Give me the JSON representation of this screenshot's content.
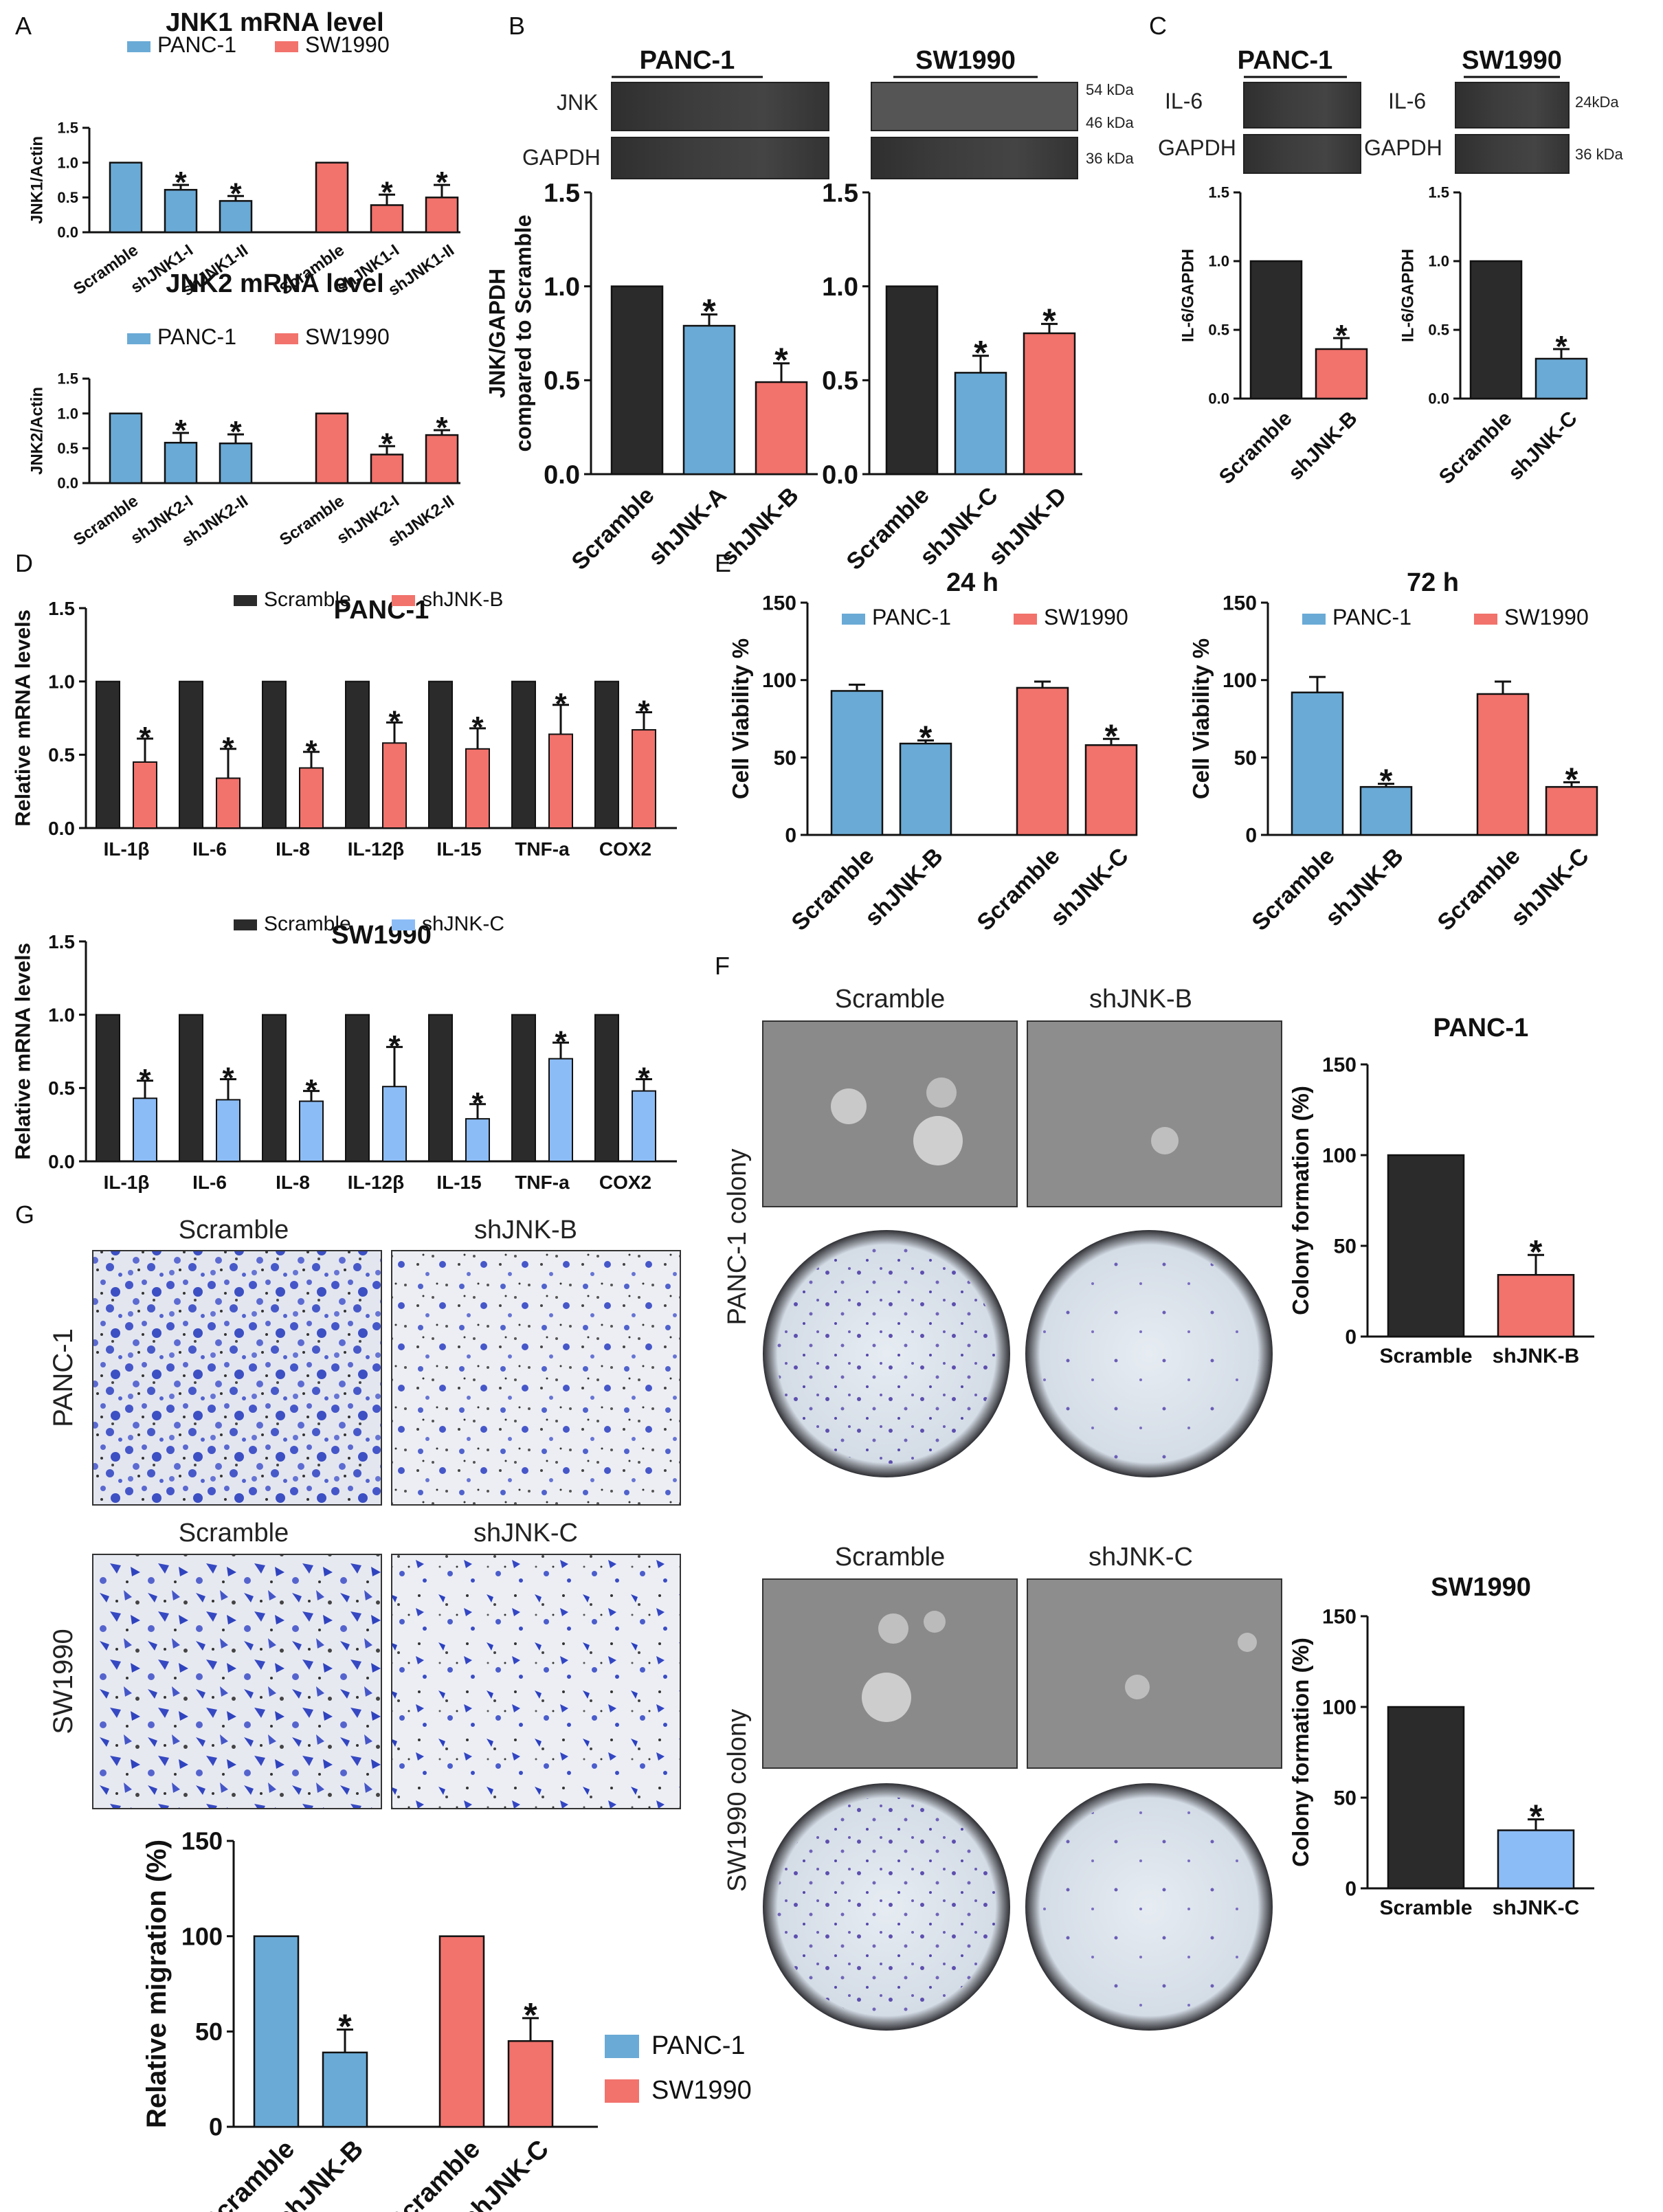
{
  "colors": {
    "panc1": "#6aaad6",
    "sw1990": "#f2726c",
    "scramble": "#2b2b2b",
    "lightblue": "#8cbcf6",
    "purple": "#6b5fb8"
  },
  "panel_labels": [
    "A",
    "B",
    "C",
    "D",
    "E",
    "F",
    "G"
  ],
  "blots": {
    "b_panc_title": "PANC-1",
    "b_sw_title": "SW1990",
    "jnk": "JNK",
    "gapdh": "GAPDH",
    "kda54": "54 kDa",
    "kda46": "46 kDa",
    "kda36": "36 kDa",
    "c_panc_title": "PANC-1",
    "c_sw_title": "SW1990",
    "il6": "IL-6",
    "il6b": "IL-6",
    "gapdh_c1": "GAPDH",
    "gapdh_c2": "GAPDH",
    "kda24": "24kDa",
    "kda36b": "36 kDa"
  },
  "images": {
    "f_scramble_1": "Scramble",
    "f_shjnkb": "shJNK-B",
    "f_panc_colony": "PANC-1 colony",
    "f_scramble_2": "Scramble",
    "f_shjnkc": "shJNK-C",
    "f_sw_colony": "SW1990 colony",
    "g_scramble_1": "Scramble",
    "g_shjnkb": "shJNK-B",
    "g_panc": "PANC-1",
    "g_scramble_2": "Scramble",
    "g_shjnkc": "shJNK-C",
    "g_sw": "SW1990"
  },
  "chart_data": [
    {
      "id": "a1",
      "type": "bar",
      "title": "JNK1 mRNA level",
      "ylabel": "JNK1/Actin",
      "ylim": [
        0,
        1.5
      ],
      "yticks": [
        "0.0",
        "0.5",
        "1.0",
        "1.5"
      ],
      "legend": [
        {
          "name": "PANC-1",
          "color": "#6aaad6"
        },
        {
          "name": "SW1990",
          "color": "#f2726c"
        }
      ],
      "categories": [
        "Scramble",
        "shJNK1-I",
        "shJNK1-II",
        "Scramble",
        "shJNK1-I",
        "shJNK1-II"
      ],
      "values": [
        1.0,
        0.61,
        0.45,
        1.0,
        0.39,
        0.5
      ],
      "errors": [
        0,
        0.07,
        0.07,
        0,
        0.15,
        0.18
      ],
      "colors": [
        "#6aaad6",
        "#6aaad6",
        "#6aaad6",
        "#f2726c",
        "#f2726c",
        "#f2726c"
      ],
      "stars": [
        false,
        true,
        true,
        false,
        true,
        true
      ]
    },
    {
      "id": "a2",
      "type": "bar",
      "title": "JNK2 mRNA level",
      "ylabel": "JNK2/Actin",
      "ylim": [
        0,
        1.5
      ],
      "yticks": [
        "0.0",
        "0.5",
        "1.0",
        "1.5"
      ],
      "legend": [
        {
          "name": "PANC-1",
          "color": "#6aaad6"
        },
        {
          "name": "SW1990",
          "color": "#f2726c"
        }
      ],
      "categories": [
        "Scramble",
        "shJNK2-I",
        "shJNK2-II",
        "Scramble",
        "shJNK2-I",
        "shJNK2-II"
      ],
      "values": [
        1.0,
        0.58,
        0.57,
        1.0,
        0.41,
        0.69
      ],
      "errors": [
        0,
        0.14,
        0.13,
        0,
        0.12,
        0.07
      ],
      "colors": [
        "#6aaad6",
        "#6aaad6",
        "#6aaad6",
        "#f2726c",
        "#f2726c",
        "#f2726c"
      ],
      "stars": [
        false,
        true,
        true,
        false,
        true,
        true
      ]
    },
    {
      "id": "b1",
      "type": "bar",
      "title": "",
      "ylabel": "JNK/GAPDH compared to Scramble",
      "ylim": [
        0,
        1.5
      ],
      "yticks": [
        "0.0",
        "0.5",
        "1.0",
        "1.5"
      ],
      "legend": [],
      "categories": [
        "Scramble",
        "shJNK-A",
        "shJNK-B"
      ],
      "values": [
        1.0,
        0.79,
        0.49
      ],
      "errors": [
        0,
        0.06,
        0.1
      ],
      "colors": [
        "#2b2b2b",
        "#6aaad6",
        "#f2726c"
      ],
      "stars": [
        false,
        true,
        true
      ]
    },
    {
      "id": "b2",
      "type": "bar",
      "title": "",
      "ylabel": "",
      "ylim": [
        0,
        1.5
      ],
      "yticks": [
        "0.0",
        "0.5",
        "1.0",
        "1.5"
      ],
      "legend": [],
      "categories": [
        "Scramble",
        "shJNK-C",
        "shJNK-D"
      ],
      "values": [
        1.0,
        0.54,
        0.75
      ],
      "errors": [
        0,
        0.09,
        0.05
      ],
      "colors": [
        "#2b2b2b",
        "#6aaad6",
        "#f2726c"
      ],
      "stars": [
        false,
        true,
        true
      ]
    },
    {
      "id": "c1",
      "type": "bar",
      "title": "",
      "ylabel": "IL-6/GAPDH",
      "ylim": [
        0,
        1.5
      ],
      "yticks": [
        "0.0",
        "0.5",
        "1.0",
        "1.5"
      ],
      "legend": [],
      "categories": [
        "Scramble",
        "shJNK-B"
      ],
      "values": [
        1.0,
        0.36
      ],
      "errors": [
        0,
        0.08
      ],
      "colors": [
        "#2b2b2b",
        "#f2726c"
      ],
      "stars": [
        false,
        true
      ]
    },
    {
      "id": "c2",
      "type": "bar",
      "title": "",
      "ylabel": "IL-6/GAPDH",
      "ylim": [
        0,
        1.5
      ],
      "yticks": [
        "0.0",
        "0.5",
        "1.0",
        "1.5"
      ],
      "legend": [],
      "categories": [
        "Scramble",
        "shJNK-C"
      ],
      "values": [
        1.0,
        0.29
      ],
      "errors": [
        0,
        0.07
      ],
      "colors": [
        "#2b2b2b",
        "#6aaad6"
      ],
      "stars": [
        false,
        true
      ]
    },
    {
      "id": "d1",
      "type": "bar",
      "title": "PANC-1",
      "ylabel": "Relative mRNA levels",
      "ylim": [
        0,
        1.5
      ],
      "yticks": [
        "0.0",
        "0.5",
        "1.0",
        "1.5"
      ],
      "legend": [
        {
          "name": "Scramble",
          "color": "#2b2b2b"
        },
        {
          "name": "shJNK-B",
          "color": "#f2726c"
        }
      ],
      "groups": [
        "IL-1β",
        "IL-6",
        "IL-8",
        "IL-12β",
        "IL-15",
        "TNF-a",
        "COX2"
      ],
      "control": [
        1,
        1,
        1,
        1,
        1,
        1,
        1
      ],
      "values": [
        0.45,
        0.34,
        0.41,
        0.58,
        0.54,
        0.64,
        0.67
      ],
      "errors": [
        0.16,
        0.2,
        0.11,
        0.14,
        0.14,
        0.2,
        0.12
      ],
      "color": "#f2726c"
    },
    {
      "id": "d2",
      "type": "bar",
      "title": "SW1990",
      "ylabel": "Relative mRNA levels",
      "ylim": [
        0,
        1.5
      ],
      "yticks": [
        "0.0",
        "0.5",
        "1.0",
        "1.5"
      ],
      "legend": [
        {
          "name": "Scramble",
          "color": "#2b2b2b"
        },
        {
          "name": "shJNK-C",
          "color": "#8cbcf6"
        }
      ],
      "groups": [
        "IL-1β",
        "IL-6",
        "IL-8",
        "IL-12β",
        "IL-15",
        "TNF-a",
        "COX2"
      ],
      "control": [
        1,
        1,
        1,
        1,
        1,
        1,
        1
      ],
      "values": [
        0.43,
        0.42,
        0.41,
        0.51,
        0.29,
        0.7,
        0.48
      ],
      "errors": [
        0.12,
        0.14,
        0.07,
        0.27,
        0.1,
        0.11,
        0.08
      ],
      "color": "#8cbcf6"
    },
    {
      "id": "e1",
      "type": "bar",
      "title": "24 h",
      "ylabel": "Cell Viability %",
      "ylim": [
        0,
        150
      ],
      "yticks": [
        "0",
        "50",
        "100",
        "150"
      ],
      "legend": [
        {
          "name": "PANC-1",
          "color": "#6aaad6"
        },
        {
          "name": "SW1990",
          "color": "#f2726c"
        }
      ],
      "categories": [
        "Scramble",
        "shJNK-B",
        "Scramble",
        "shJNK-C"
      ],
      "values": [
        93,
        59,
        95,
        58
      ],
      "errors": [
        4,
        2,
        4,
        4
      ],
      "colors": [
        "#6aaad6",
        "#6aaad6",
        "#f2726c",
        "#f2726c"
      ],
      "stars": [
        false,
        true,
        false,
        true
      ]
    },
    {
      "id": "e2",
      "type": "bar",
      "title": "72 h",
      "ylabel": "Cell Viability %",
      "ylim": [
        0,
        150
      ],
      "yticks": [
        "0",
        "50",
        "100",
        "150"
      ],
      "legend": [
        {
          "name": "PANC-1",
          "color": "#6aaad6"
        },
        {
          "name": "SW1990",
          "color": "#f2726c"
        }
      ],
      "categories": [
        "Scramble",
        "shJNK-B",
        "Scramble",
        "shJNK-C"
      ],
      "values": [
        92,
        31,
        91,
        31
      ],
      "errors": [
        10,
        2,
        8,
        3
      ],
      "colors": [
        "#6aaad6",
        "#6aaad6",
        "#f2726c",
        "#f2726c"
      ],
      "stars": [
        false,
        true,
        false,
        true
      ]
    },
    {
      "id": "f1",
      "type": "bar",
      "title": "PANC-1",
      "ylabel": "Colony formation (%)",
      "ylim": [
        0,
        150
      ],
      "yticks": [
        "0",
        "50",
        "100",
        "150"
      ],
      "legend": [],
      "categories": [
        "Scramble",
        "shJNK-B"
      ],
      "values": [
        100,
        34
      ],
      "errors": [
        0,
        11
      ],
      "colors": [
        "#2b2b2b",
        "#f2726c"
      ],
      "stars": [
        false,
        true
      ]
    },
    {
      "id": "f2",
      "type": "bar",
      "title": "SW1990",
      "ylabel": "Colony formation (%)",
      "ylim": [
        0,
        150
      ],
      "yticks": [
        "0",
        "50",
        "100",
        "150"
      ],
      "legend": [],
      "categories": [
        "Scramble",
        "shJNK-C"
      ],
      "values": [
        100,
        32
      ],
      "errors": [
        0,
        6
      ],
      "colors": [
        "#2b2b2b",
        "#8cbcf6"
      ],
      "stars": [
        false,
        true
      ]
    },
    {
      "id": "g",
      "type": "bar",
      "title": "",
      "ylabel": "Relative migration (%)",
      "ylim": [
        0,
        150
      ],
      "yticks": [
        "0",
        "50",
        "100",
        "150"
      ],
      "legend": [
        {
          "name": "PANC-1",
          "color": "#6aaad6"
        },
        {
          "name": "SW1990",
          "color": "#f2726c"
        }
      ],
      "categories": [
        "Scramble",
        "shJNK-B",
        "Scramble",
        "shJNK-C"
      ],
      "values": [
        100,
        39,
        100,
        45
      ],
      "errors": [
        0,
        12,
        0,
        12
      ],
      "colors": [
        "#6aaad6",
        "#6aaad6",
        "#f2726c",
        "#f2726c"
      ],
      "stars": [
        false,
        true,
        false,
        true
      ]
    }
  ]
}
